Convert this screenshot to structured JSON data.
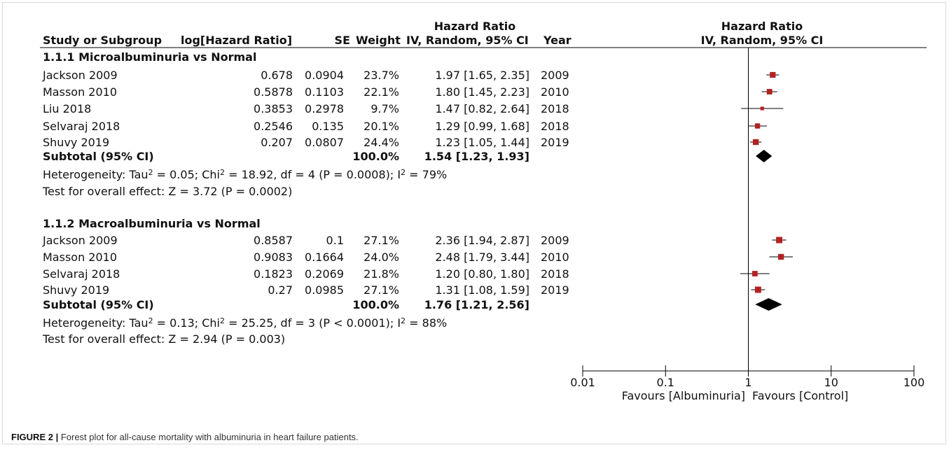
{
  "header": {
    "study": "Study or Subgroup",
    "loghr": "log[Hazard Ratio]",
    "se": "SE",
    "weight": "Weight",
    "hr_title": "Hazard Ratio",
    "hr_method": "IV, Random, 95% CI",
    "year": "Year",
    "plot_title": "Hazard Ratio",
    "plot_method": "IV, Random, 95% CI"
  },
  "groups": [
    {
      "title": "1.1.1 Microalbuminuria vs Normal",
      "studies": [
        {
          "name": "Jackson 2009",
          "loghr": "0.678",
          "se": "0.0904",
          "weight": "23.7%",
          "ci": "1.97 [1.65, 2.35]",
          "year": "2009"
        },
        {
          "name": "Masson 2010",
          "loghr": "0.5878",
          "se": "0.1103",
          "weight": "22.1%",
          "ci": "1.80 [1.45, 2.23]",
          "year": "2010"
        },
        {
          "name": "Liu 2018",
          "loghr": "0.3853",
          "se": "0.2978",
          "weight": "9.7%",
          "ci": "1.47 [0.82, 2.64]",
          "year": "2018"
        },
        {
          "name": "Selvaraj 2018",
          "loghr": "0.2546",
          "se": "0.135",
          "weight": "20.1%",
          "ci": "1.29 [0.99, 1.68]",
          "year": "2018"
        },
        {
          "name": "Shuvy 2019",
          "loghr": "0.207",
          "se": "0.0807",
          "weight": "24.4%",
          "ci": "1.23 [1.05, 1.44]",
          "year": "2019"
        }
      ],
      "subtotal": {
        "label": "Subtotal (95% CI)",
        "weight": "100.0%",
        "ci": "1.54 [1.23, 1.93]"
      },
      "heterogeneity": [
        "Heterogeneity: Tau",
        "2",
        " = 0.05; Chi",
        "2",
        " = 18.92, df = 4 (P = 0.0008); I",
        "2",
        " = 79%"
      ],
      "overall": "Test for overall effect: Z = 3.72 (P = 0.0002)"
    },
    {
      "title": "1.1.2 Macroalbuminuria vs Normal",
      "studies": [
        {
          "name": "Jackson 2009",
          "loghr": "0.8587",
          "se": "0.1",
          "weight": "27.1%",
          "ci": "2.36 [1.94, 2.87]",
          "year": "2009"
        },
        {
          "name": "Masson 2010",
          "loghr": "0.9083",
          "se": "0.1664",
          "weight": "24.0%",
          "ci": "2.48 [1.79, 3.44]",
          "year": "2010"
        },
        {
          "name": "Selvaraj 2018",
          "loghr": "0.1823",
          "se": "0.2069",
          "weight": "21.8%",
          "ci": "1.20 [0.80, 1.80]",
          "year": "2018"
        },
        {
          "name": "Shuvy 2019",
          "loghr": "0.27",
          "se": "0.0985",
          "weight": "27.1%",
          "ci": "1.31 [1.08, 1.59]",
          "year": "2019"
        }
      ],
      "subtotal": {
        "label": "Subtotal (95% CI)",
        "weight": "100.0%",
        "ci": "1.76 [1.21, 2.56]"
      },
      "heterogeneity": [
        "Heterogeneity: Tau",
        "2",
        " = 0.13; Chi",
        "2",
        " = 25.25, df = 3 (P < 0.0001); I",
        "2",
        " = 88%"
      ],
      "overall": "Test for overall effect: Z = 2.94 (P = 0.003)"
    }
  ],
  "axis": {
    "scale": "log",
    "range": [
      0.01,
      100
    ],
    "ticks": [
      0.01,
      0.1,
      1,
      10,
      100
    ],
    "tick_labels": [
      "0.01",
      "0.1",
      "1",
      "10",
      "100"
    ],
    "favours_left": "Favours [Albuminuria]",
    "favours_right": "Favours [Control]"
  },
  "caption": {
    "label": "FIGURE 2 |",
    "text": " Forest plot for all-cause mortality with albuminuria in heart failure patients."
  },
  "colors": {
    "point": "#b22222",
    "diamond": "#000000",
    "line": "#000000"
  },
  "chart_data": {
    "type": "forest",
    "xscale": "log",
    "xlim": [
      0.01,
      100
    ],
    "reference_line": 1,
    "series": [
      {
        "name": "1.1.1 Microalbuminuria vs Normal",
        "studies": [
          {
            "label": "Jackson 2009",
            "hr": 1.97,
            "lo": 1.65,
            "hi": 2.35,
            "weight": 23.7
          },
          {
            "label": "Masson 2010",
            "hr": 1.8,
            "lo": 1.45,
            "hi": 2.23,
            "weight": 22.1
          },
          {
            "label": "Liu 2018",
            "hr": 1.47,
            "lo": 0.82,
            "hi": 2.64,
            "weight": 9.7
          },
          {
            "label": "Selvaraj 2018",
            "hr": 1.29,
            "lo": 0.99,
            "hi": 1.68,
            "weight": 20.1
          },
          {
            "label": "Shuvy 2019",
            "hr": 1.23,
            "lo": 1.05,
            "hi": 1.44,
            "weight": 24.4
          }
        ],
        "subtotal": {
          "hr": 1.54,
          "lo": 1.23,
          "hi": 1.93
        }
      },
      {
        "name": "1.1.2 Macroalbuminuria vs Normal",
        "studies": [
          {
            "label": "Jackson 2009",
            "hr": 2.36,
            "lo": 1.94,
            "hi": 2.87,
            "weight": 27.1
          },
          {
            "label": "Masson 2010",
            "hr": 2.48,
            "lo": 1.79,
            "hi": 3.44,
            "weight": 24.0
          },
          {
            "label": "Selvaraj 2018",
            "hr": 1.2,
            "lo": 0.8,
            "hi": 1.8,
            "weight": 21.8
          },
          {
            "label": "Shuvy 2019",
            "hr": 1.31,
            "lo": 1.08,
            "hi": 1.59,
            "weight": 27.1
          }
        ],
        "subtotal": {
          "hr": 1.76,
          "lo": 1.21,
          "hi": 2.56
        }
      }
    ]
  }
}
